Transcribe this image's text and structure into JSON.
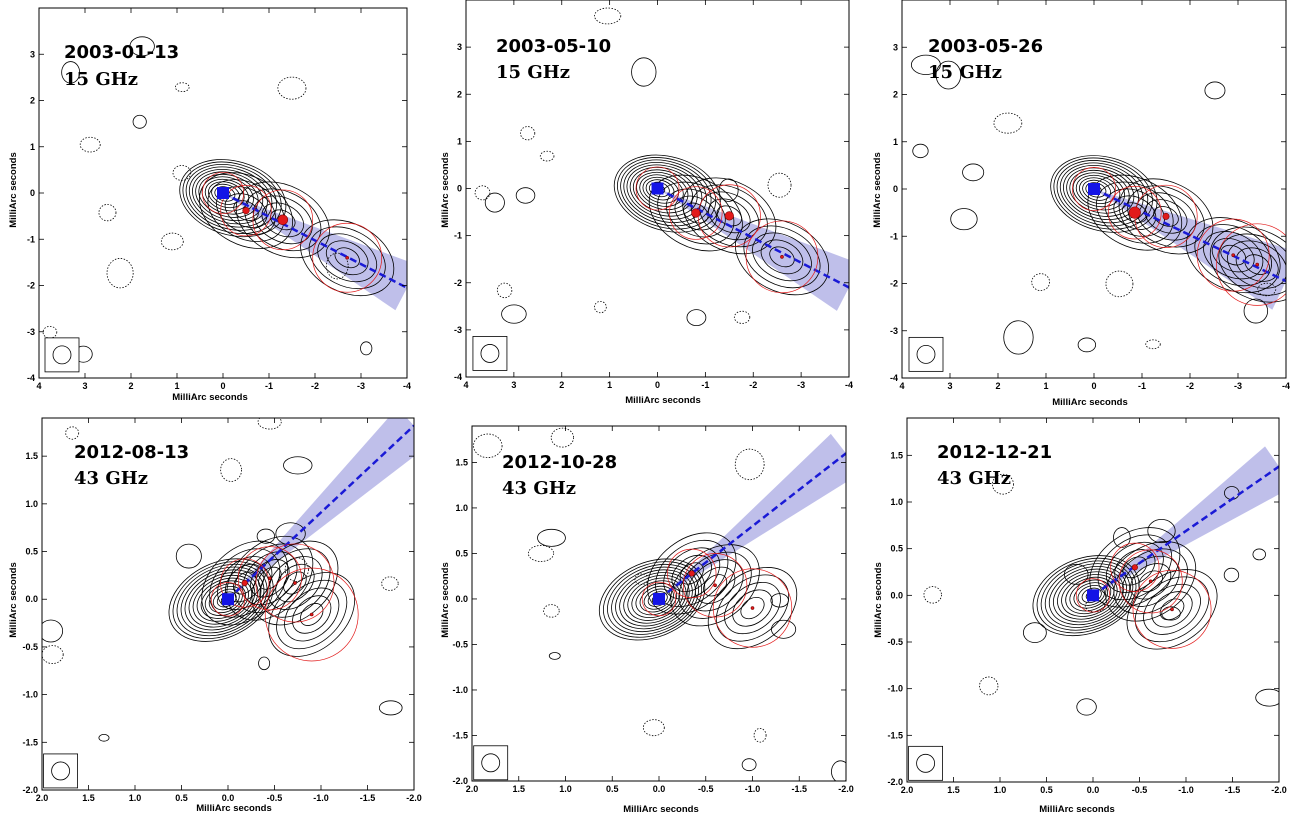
{
  "chart_data": [
    {
      "type": "scatter",
      "title": "",
      "epoch": "2003-01-13",
      "frequency": "15 GHz",
      "xlabel": "MilliArc seconds",
      "ylabel": "MilliArc seconds",
      "xlim": [
        4,
        -4
      ],
      "ylim": [
        -4,
        4
      ],
      "xticks": [
        "4",
        "3",
        "2",
        "1",
        "0",
        "-1",
        "-2",
        "-3",
        "-4"
      ],
      "yticks": [
        "3",
        "2",
        "1",
        "0",
        "-1",
        "-2",
        "-3",
        "-4"
      ],
      "core": [
        0,
        0
      ],
      "jet_fit": {
        "from": [
          0,
          0
        ],
        "to": [
          -4,
          -2.05
        ],
        "band_halfwidth": 0.25
      },
      "components": [
        {
          "x": 0,
          "y": 0,
          "r": 0.3
        },
        {
          "x": -0.5,
          "y": -0.38,
          "r": 0.12
        },
        {
          "x": -1.3,
          "y": -0.58,
          "r": 0.18
        },
        {
          "x": -2.7,
          "y": -1.4,
          "r": 0.0
        }
      ],
      "beam_x": 3.5,
      "beam_y": -3.5,
      "grid": false
    },
    {
      "type": "scatter",
      "title": "",
      "epoch": "2003-05-10",
      "frequency": "15 GHz",
      "xlabel": "MilliArc seconds",
      "ylabel": "MilliArc seconds",
      "xlim": [
        4,
        -4
      ],
      "ylim": [
        -4,
        4
      ],
      "xticks": [
        "4",
        "3",
        "2",
        "1",
        "0",
        "-1",
        "-2",
        "-3",
        "-4"
      ],
      "yticks": [
        "3",
        "2",
        "1",
        "0",
        "-1",
        "-2",
        "-3",
        "-4"
      ],
      "core": [
        0,
        0
      ],
      "jet_fit": {
        "from": [
          0,
          0
        ],
        "to": [
          -4,
          -2.1
        ],
        "band_halfwidth": 0.25
      },
      "components": [
        {
          "x": 0,
          "y": 0,
          "r": 0.3
        },
        {
          "x": -0.8,
          "y": -0.52,
          "r": 0.15
        },
        {
          "x": -1.5,
          "y": -0.58,
          "r": 0.15
        },
        {
          "x": -2.6,
          "y": -1.45,
          "r": 0.0
        }
      ],
      "beam_x": 3.5,
      "beam_y": -3.5,
      "grid": false
    },
    {
      "type": "scatter",
      "title": "",
      "epoch": "2003-05-26",
      "frequency": "15 GHz",
      "xlabel": "MilliArc seconds",
      "ylabel": "MilliArc seconds",
      "xlim": [
        4,
        -4
      ],
      "ylim": [
        -4,
        4
      ],
      "xticks": [
        "4",
        "3",
        "2",
        "1",
        "0",
        "-1",
        "-2",
        "-3",
        "-4"
      ],
      "yticks": [
        "3",
        "2",
        "1",
        "0",
        "-1",
        "-2",
        "-3",
        "-4"
      ],
      "core": [
        0,
        0
      ],
      "jet_fit": {
        "from": [
          0,
          0
        ],
        "to": [
          -4,
          -1.95
        ],
        "band_halfwidth": 0.3
      },
      "components": [
        {
          "x": 0,
          "y": 0,
          "r": 0.3
        },
        {
          "x": -0.85,
          "y": -0.5,
          "r": 0.2
        },
        {
          "x": -1.5,
          "y": -0.58,
          "r": 0.11
        },
        {
          "x": -2.9,
          "y": -1.4,
          "r": 0.0
        },
        {
          "x": -3.4,
          "y": -1.6,
          "r": 0.0
        }
      ],
      "beam_x": 3.5,
      "beam_y": -3.5,
      "grid": false
    },
    {
      "type": "scatter",
      "title": "",
      "epoch": "2012-08-13",
      "frequency": "43 GHz",
      "xlabel": "MilliArc seconds",
      "ylabel": "MilliArc seconds",
      "xlim": [
        2,
        -2
      ],
      "ylim": [
        -2,
        1.9
      ],
      "xticks": [
        "2.0",
        "1.5",
        "1.0",
        "0.5",
        "0.0",
        "-0.5",
        "-1.0",
        "-1.5",
        "-2.0"
      ],
      "yticks": [
        "1.5",
        "1.0",
        "0.5",
        "0.0",
        "-0.5",
        "-1.0",
        "-1.5",
        "-2.0"
      ],
      "core": [
        0,
        0
      ],
      "jet_fit": {
        "from": [
          0,
          0
        ],
        "to": [
          -2.0,
          1.82
        ],
        "band_halfwidth": 0.12
      },
      "components": [
        {
          "x": 0,
          "y": 0,
          "r": 0.3
        },
        {
          "x": -0.18,
          "y": 0.17,
          "r": 0.05
        },
        {
          "x": -0.45,
          "y": 0.22,
          "r": 0.02
        },
        {
          "x": -0.72,
          "y": 0.17,
          "r": 0.01
        },
        {
          "x": -0.9,
          "y": -0.16,
          "r": 0.01
        }
      ],
      "beam_x": 1.8,
      "beam_y": -1.8,
      "grid": false
    },
    {
      "type": "scatter",
      "title": "",
      "epoch": "2012-10-28",
      "frequency": "43 GHz",
      "xlabel": "MilliArc seconds",
      "ylabel": "MilliArc seconds",
      "xlim": [
        2,
        -2
      ],
      "ylim": [
        -2,
        1.9
      ],
      "xticks": [
        "2.0",
        "1.5",
        "1.0",
        "0.5",
        "0.0",
        "-0.5",
        "-1.0",
        "-1.5",
        "-2.0"
      ],
      "yticks": [
        "1.5",
        "1.0",
        "0.5",
        "0.0",
        "-0.5",
        "-1.0",
        "-1.5",
        "-2.0"
      ],
      "core": [
        0,
        0
      ],
      "jet_fit": {
        "from": [
          0,
          0
        ],
        "to": [
          -2.0,
          1.6
        ],
        "band_halfwidth": 0.12
      },
      "components": [
        {
          "x": 0,
          "y": 0,
          "r": 0.3
        },
        {
          "x": -0.35,
          "y": 0.28,
          "r": 0.05
        },
        {
          "x": -0.6,
          "y": 0.15,
          "r": 0.01
        },
        {
          "x": -1.0,
          "y": -0.1,
          "r": 0.01
        }
      ],
      "beam_x": 1.8,
      "beam_y": -1.8,
      "grid": false
    },
    {
      "type": "scatter",
      "title": "",
      "epoch": "2012-12-21",
      "frequency": "43 GHz",
      "xlabel": "MilliArc seconds",
      "ylabel": "MilliArc seconds",
      "xlim": [
        2,
        -2
      ],
      "ylim": [
        -2,
        1.9
      ],
      "xticks": [
        "2.0",
        "1.5",
        "1.0",
        "0.5",
        "0.0",
        "-0.5",
        "-1.0",
        "-1.5",
        "-2.0"
      ],
      "yticks": [
        "1.5",
        "1.0",
        "0.5",
        "0.0",
        "-0.5",
        "-1.0",
        "-1.5",
        "-2.0"
      ],
      "core": [
        0,
        0
      ],
      "jet_fit": {
        "from": [
          0,
          0
        ],
        "to": [
          -2.0,
          1.38
        ],
        "band_halfwidth": 0.12
      },
      "components": [
        {
          "x": 0,
          "y": 0,
          "r": 0.3
        },
        {
          "x": -0.45,
          "y": 0.3,
          "r": 0.05
        },
        {
          "x": -0.62,
          "y": 0.15,
          "r": 0.01
        },
        {
          "x": -0.85,
          "y": -0.15,
          "r": 0.02
        }
      ],
      "beam_x": 1.8,
      "beam_y": -1.8,
      "grid": false
    }
  ],
  "colors": {
    "core": "#1414e6",
    "jet_line": "#1a1ad6",
    "jet_band": "#b4b4e6",
    "component": "#e21a1a",
    "contour": "#000000"
  }
}
